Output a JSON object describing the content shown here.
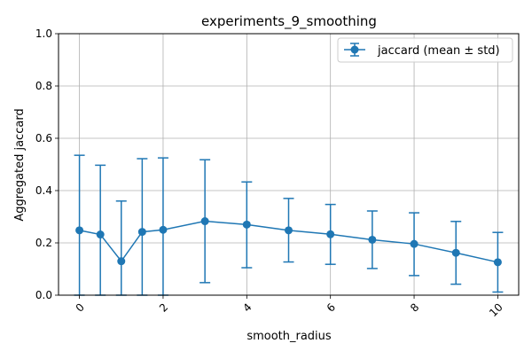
{
  "chart_data": {
    "type": "line",
    "title": "experiments_9_smoothing",
    "xlabel": "smooth_radius",
    "ylabel": "Aggregated jaccard",
    "xlim": [
      -0.5,
      10.5
    ],
    "ylim": [
      0,
      1
    ],
    "grid": true,
    "legend_placement": "top-right",
    "x_ticks": [
      0,
      2,
      4,
      6,
      8,
      10
    ],
    "x_tick_labels": [
      "0",
      "2",
      "4",
      "6",
      "8",
      "10"
    ],
    "y_ticks": [
      0.0,
      0.2,
      0.4,
      0.6,
      0.8,
      1.0
    ],
    "y_tick_labels": [
      "0.0",
      "0.2",
      "0.4",
      "0.6",
      "0.8",
      "1.0"
    ],
    "series": [
      {
        "name": "jaccard (mean ± std)",
        "color": "#1f77b4",
        "x": [
          0,
          0.5,
          1,
          1.5,
          2,
          3,
          4,
          5,
          6,
          7,
          8,
          9,
          10
        ],
        "y": [
          0.248,
          0.232,
          0.13,
          0.242,
          0.25,
          0.283,
          0.27,
          0.248,
          0.233,
          0.212,
          0.196,
          0.162,
          0.126
        ],
        "lower": [
          0.0,
          0.0,
          0.0,
          0.0,
          0.0,
          0.048,
          0.105,
          0.127,
          0.118,
          0.102,
          0.075,
          0.042,
          0.012
        ],
        "upper": [
          0.535,
          0.497,
          0.36,
          0.522,
          0.525,
          0.518,
          0.433,
          0.37,
          0.347,
          0.322,
          0.315,
          0.282,
          0.24
        ]
      }
    ]
  }
}
